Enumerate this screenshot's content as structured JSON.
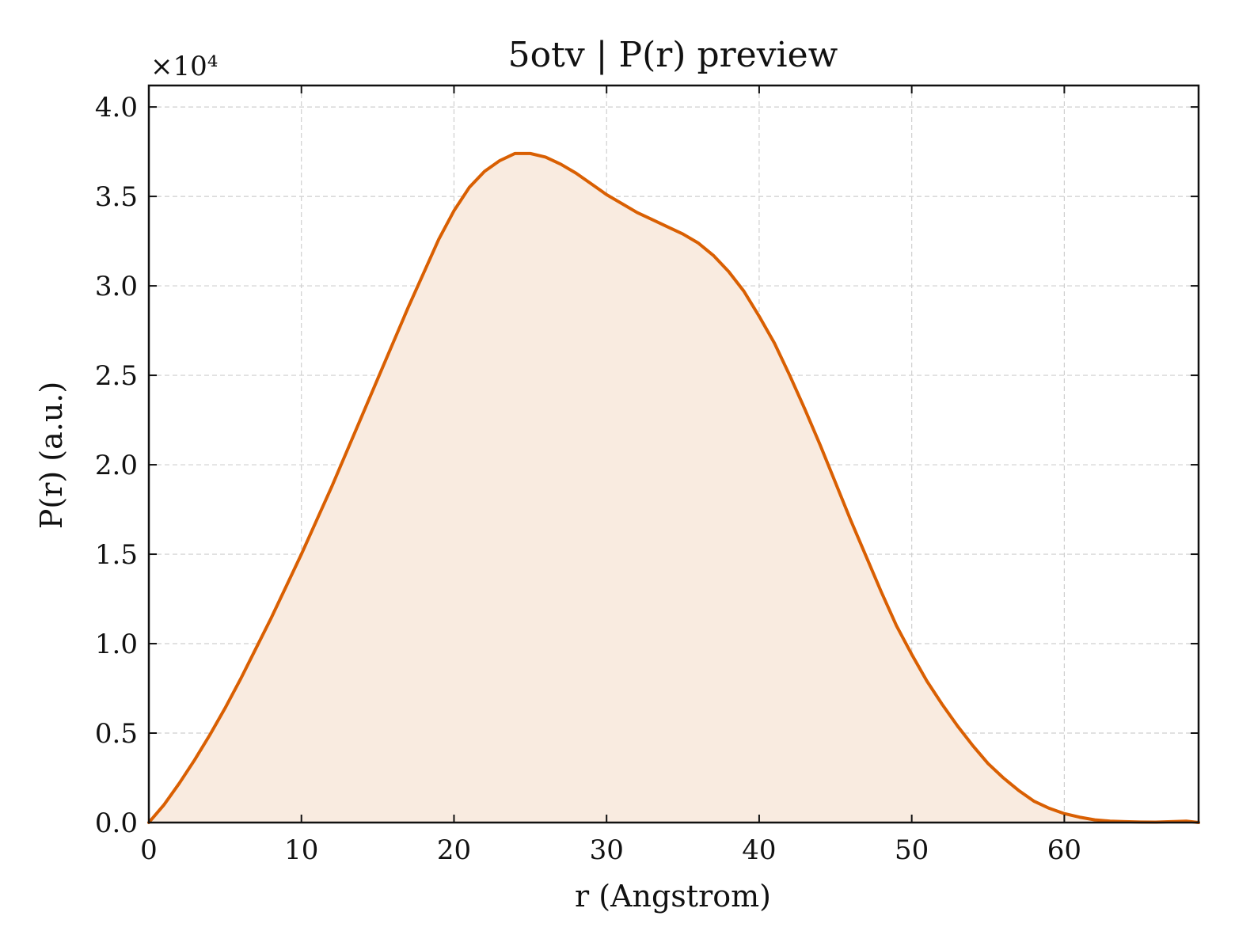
{
  "chart_data": {
    "type": "area",
    "title": "5otv | P(r) preview",
    "xlabel": "r (Angstrom)",
    "ylabel": "P(r) (a.u.)",
    "y_multiplier_label": "×10⁴",
    "y_scale_factor": 10000,
    "xlim": [
      0,
      68.8
    ],
    "ylim": [
      0,
      41200
    ],
    "xticks": [
      0,
      10,
      20,
      30,
      40,
      50,
      60
    ],
    "xtick_labels": [
      "0",
      "10",
      "20",
      "30",
      "40",
      "50",
      "60"
    ],
    "yticks": [
      0,
      5000,
      10000,
      15000,
      20000,
      25000,
      30000,
      35000,
      40000
    ],
    "ytick_labels": [
      "0.0",
      "0.5",
      "1.0",
      "1.5",
      "2.0",
      "2.5",
      "3.0",
      "3.5",
      "4.0"
    ],
    "grid": true,
    "line_color": "#d95f02",
    "fill_color": "#f9ebe0",
    "series": [
      {
        "x": [
          0,
          1,
          2,
          3,
          4,
          5,
          6,
          7,
          8,
          9,
          10,
          11,
          12,
          13,
          14,
          15,
          16,
          17,
          18,
          19,
          20,
          21,
          22,
          23,
          24,
          25,
          26,
          27,
          28,
          29,
          30,
          31,
          32,
          33,
          34,
          35,
          36,
          37,
          38,
          39,
          40,
          41,
          42,
          43,
          44,
          45,
          46,
          47,
          48,
          49,
          50,
          51,
          52,
          53,
          54,
          55,
          56,
          57,
          58,
          59,
          60,
          61,
          62,
          63,
          64,
          65,
          66,
          67,
          68,
          68.8
        ],
        "y": [
          0,
          1000,
          2200,
          3500,
          4900,
          6400,
          8000,
          9700,
          11400,
          13200,
          15000,
          16900,
          18800,
          20800,
          22800,
          24800,
          26800,
          28800,
          30700,
          32600,
          34200,
          35500,
          36400,
          37000,
          37400,
          37400,
          37200,
          36800,
          36300,
          35700,
          35100,
          34600,
          34100,
          33700,
          33300,
          32900,
          32400,
          31700,
          30800,
          29700,
          28300,
          26800,
          25000,
          23100,
          21100,
          19000,
          16900,
          14900,
          12900,
          11000,
          9400,
          7900,
          6600,
          5400,
          4300,
          3300,
          2500,
          1800,
          1200,
          800,
          500,
          300,
          150,
          80,
          50,
          30,
          20,
          50,
          80,
          0
        ]
      }
    ]
  }
}
